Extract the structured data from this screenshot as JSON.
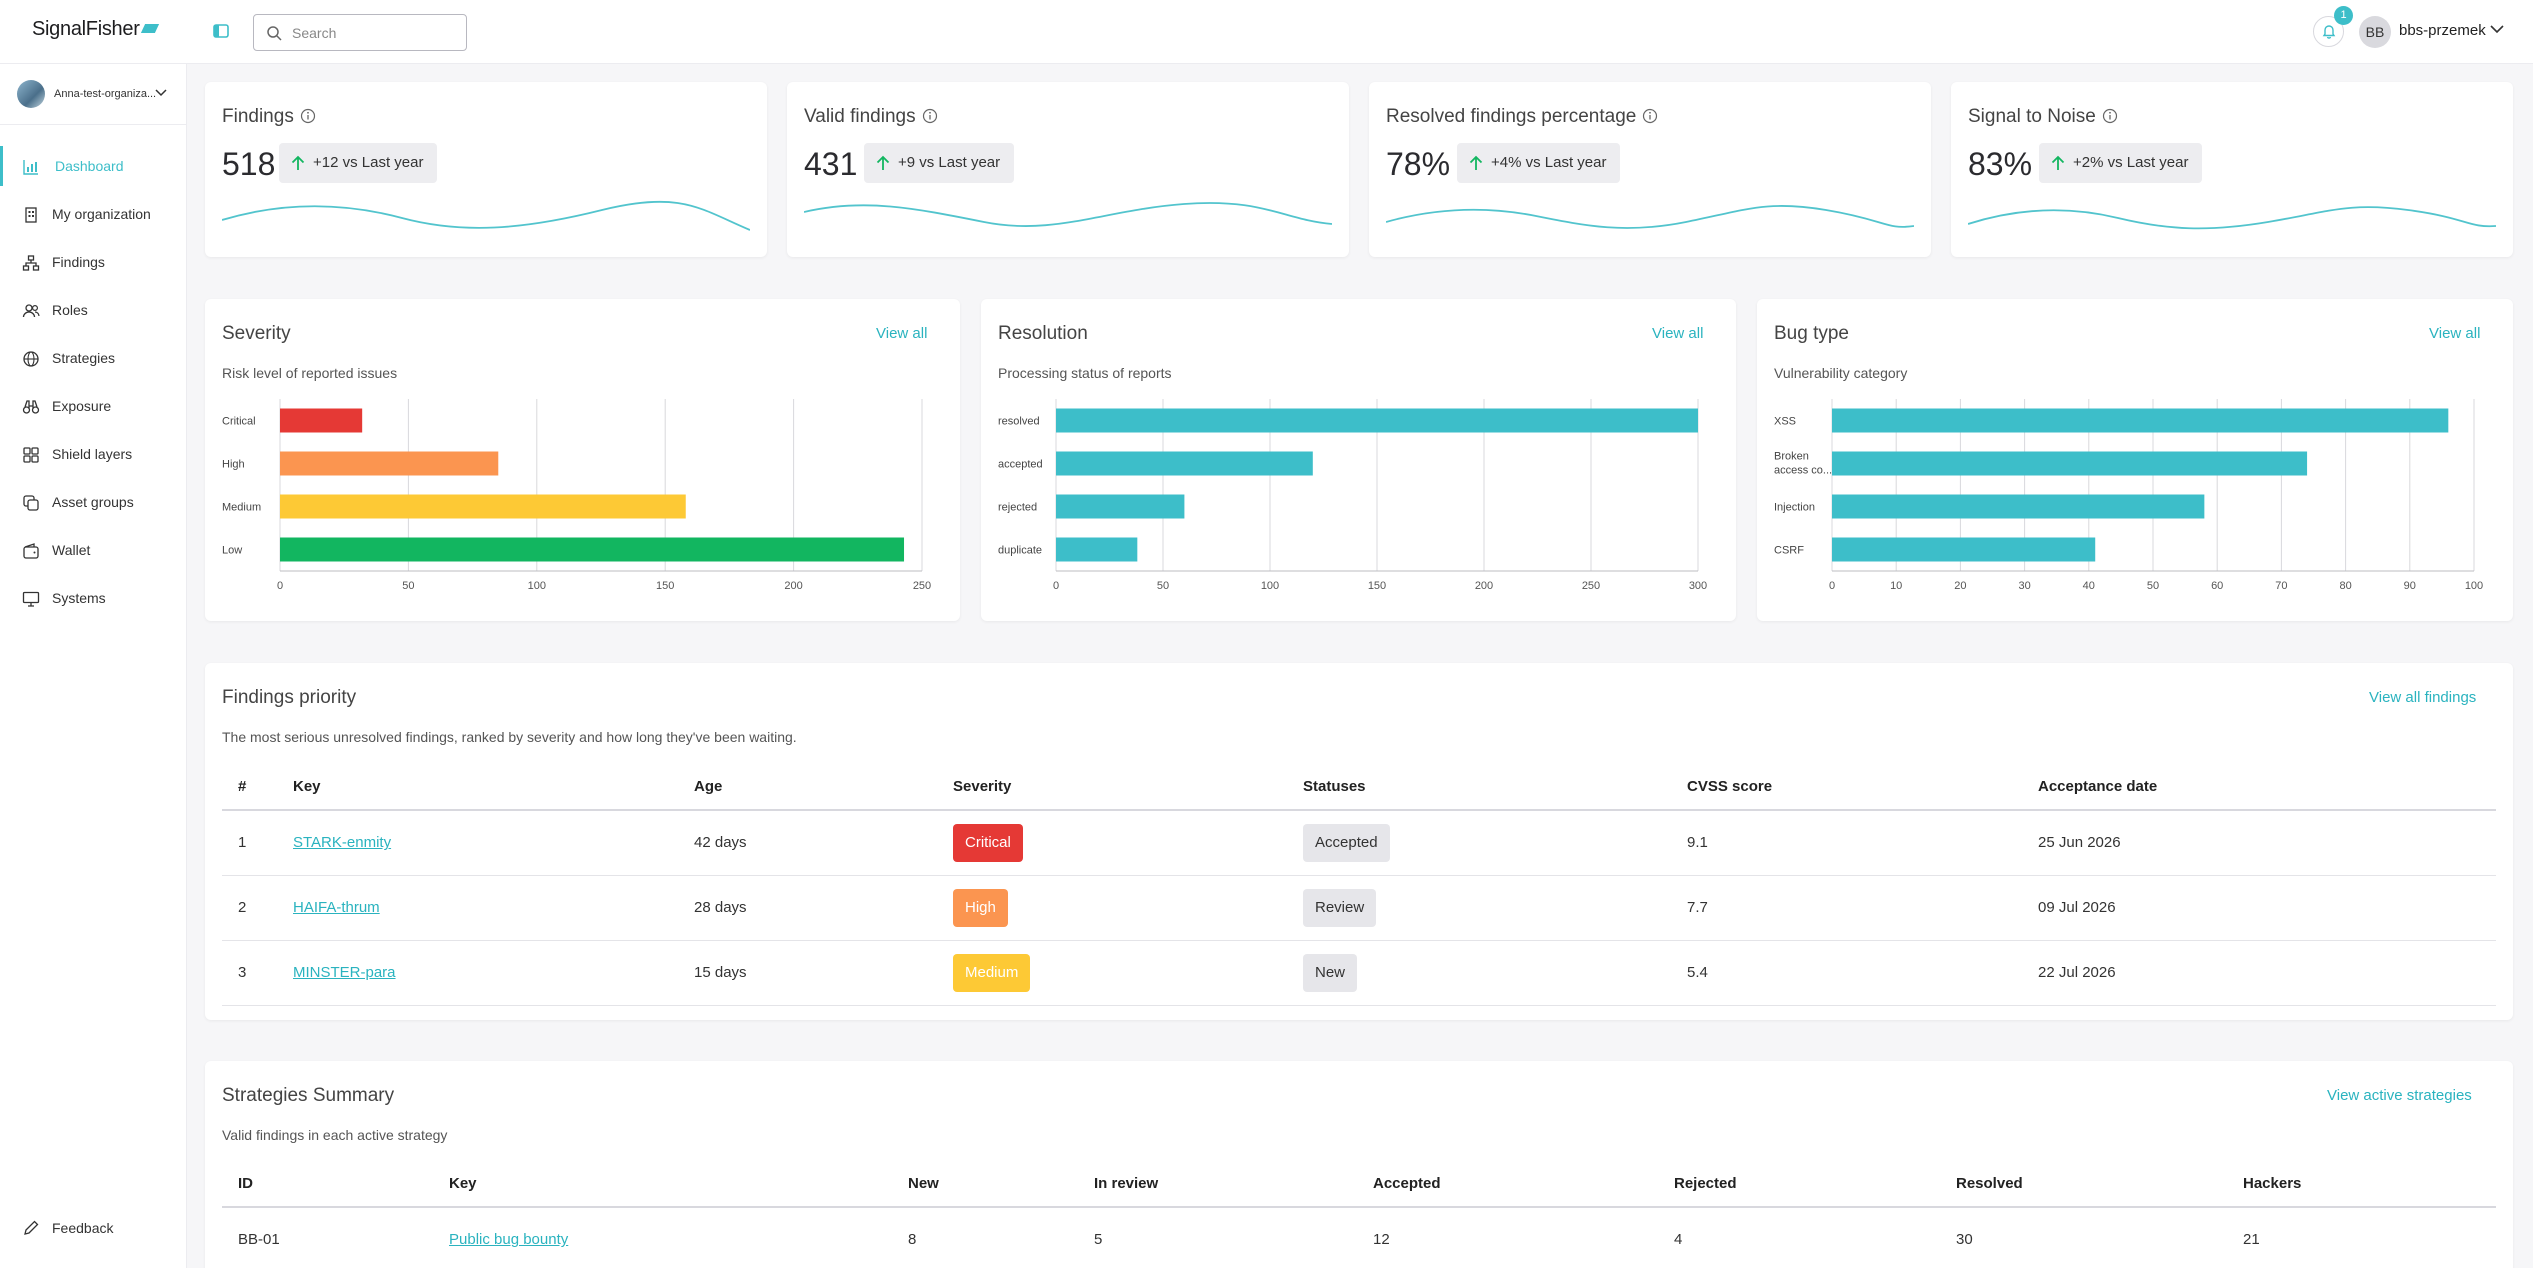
{
  "app": {
    "logo": "SignalFisher"
  },
  "header": {
    "search_placeholder": "Search",
    "notification_count": "1",
    "user_initials": "BB",
    "user_name": "bbs-przemek"
  },
  "sidebar": {
    "org_name": "Anna-test-organiza...",
    "items": [
      {
        "label": "Dashboard",
        "icon": "bar-chart-icon",
        "active": true
      },
      {
        "label": "My organization",
        "icon": "building-icon"
      },
      {
        "label": "Findings",
        "icon": "hierarchy-icon"
      },
      {
        "label": "Roles",
        "icon": "users-icon"
      },
      {
        "label": "Strategies",
        "icon": "globe-icon"
      },
      {
        "label": "Exposure",
        "icon": "binoculars-icon"
      },
      {
        "label": "Shield layers",
        "icon": "grid-icon"
      },
      {
        "label": "Asset groups",
        "icon": "layers-icon"
      },
      {
        "label": "Wallet",
        "icon": "wallet-icon"
      },
      {
        "label": "Systems",
        "icon": "monitor-icon"
      }
    ],
    "feedback_label": "Feedback"
  },
  "kpis": [
    {
      "title": "Findings",
      "value": "518",
      "delta": "+12 vs Last year"
    },
    {
      "title": "Valid findings",
      "value": "431",
      "delta": "+9 vs Last year"
    },
    {
      "title": "Resolved findings percentage",
      "value": "78%",
      "delta": "+4% vs Last year"
    },
    {
      "title": "Signal to Noise",
      "value": "83%",
      "delta": "+2% vs Last year"
    }
  ],
  "colors": {
    "accent": "#3dbec9",
    "critical": "#e53935",
    "high": "#fb9550",
    "medium": "#fdc935",
    "low": "#12b660"
  },
  "panels": {
    "severity": {
      "title": "Severity",
      "subtitle": "Risk level of reported issues",
      "link": "View all"
    },
    "resolution": {
      "title": "Resolution",
      "subtitle": "Processing status of reports",
      "link": "View all"
    },
    "bugtype": {
      "title": "Bug type",
      "subtitle": "Vulnerability category",
      "link": "View all"
    }
  },
  "chart_data": [
    {
      "type": "bar",
      "orientation": "horizontal",
      "categories": [
        "Critical",
        "High",
        "Medium",
        "Low"
      ],
      "values": [
        32,
        85,
        158,
        243
      ],
      "colors": [
        "#e53935",
        "#fb9550",
        "#fdc935",
        "#12b660"
      ],
      "xlim": [
        0,
        250
      ],
      "ticks": [
        0,
        50,
        100,
        150,
        200,
        250
      ],
      "grid": true
    },
    {
      "type": "bar",
      "orientation": "horizontal",
      "categories": [
        "resolved",
        "accepted",
        "rejected",
        "duplicate"
      ],
      "values": [
        300,
        120,
        60,
        38
      ],
      "colors": [
        "#3dbec9",
        "#3dbec9",
        "#3dbec9",
        "#3dbec9"
      ],
      "xlim": [
        0,
        300
      ],
      "ticks": [
        0,
        50,
        100,
        150,
        200,
        250,
        300
      ],
      "grid": true
    },
    {
      "type": "bar",
      "orientation": "horizontal",
      "categories": [
        "XSS",
        "Broken access co...",
        "Injection",
        "CSRF"
      ],
      "values": [
        96,
        74,
        58,
        41
      ],
      "colors": [
        "#3dbec9",
        "#3dbec9",
        "#3dbec9",
        "#3dbec9"
      ],
      "xlim": [
        0,
        100
      ],
      "ticks": [
        0,
        10,
        20,
        30,
        40,
        50,
        60,
        70,
        80,
        90,
        100
      ],
      "grid": true
    }
  ],
  "priority": {
    "title": "Findings priority",
    "subtitle": "The most serious unresolved findings, ranked by severity and how long they've been waiting.",
    "link": "View all findings",
    "columns": [
      "#",
      "Key",
      "Age",
      "Severity",
      "Statuses",
      "CVSS score",
      "Acceptance date"
    ],
    "rows": [
      {
        "num": "1",
        "key": "STARK-enmity",
        "age": "42 days",
        "severity": "Critical",
        "status": "Accepted",
        "cvss": "9.1",
        "date": "25 Jun 2026"
      },
      {
        "num": "2",
        "key": "HAIFA-thrum",
        "age": "28 days",
        "severity": "High",
        "status": "Review",
        "cvss": "7.7",
        "date": "09 Jul 2026"
      },
      {
        "num": "3",
        "key": "MINSTER-para",
        "age": "15 days",
        "severity": "Medium",
        "status": "New",
        "cvss": "5.4",
        "date": "22 Jul 2026"
      }
    ]
  },
  "strategies": {
    "title": "Strategies Summary",
    "subtitle": "Valid findings in each active strategy",
    "link": "View active strategies",
    "columns": [
      "ID",
      "Key",
      "New",
      "In review",
      "Accepted",
      "Rejected",
      "Resolved",
      "Hackers"
    ],
    "rows": [
      {
        "id": "BB-01",
        "key": "Public bug bounty",
        "new": "8",
        "in_review": "5",
        "accepted": "12",
        "rejected": "4",
        "resolved": "30",
        "hackers": "21"
      }
    ]
  }
}
